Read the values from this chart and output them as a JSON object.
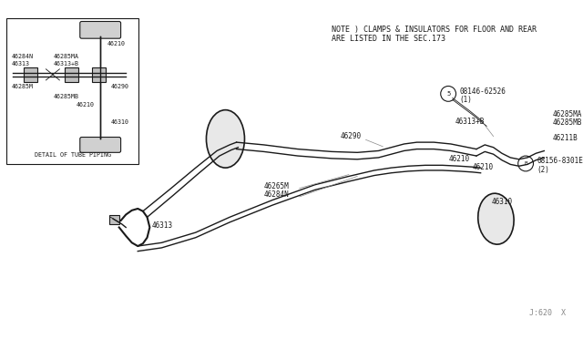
{
  "bg_color": "#ffffff",
  "line_color": "#1a1a1a",
  "text_color": "#1a1a1a",
  "gray_color": "#888888",
  "note_text_line1": "NOTE ) CLAMPS & INSULATORS FOR FLOOR AND REAR",
  "note_text_line2": "ARE LISTED IN THE SEC.173",
  "detail_label": "DETAIL OF TUBE PIPING",
  "part_id": "J:620  X",
  "fig_w": 6.4,
  "fig_h": 3.72,
  "dpi": 100
}
